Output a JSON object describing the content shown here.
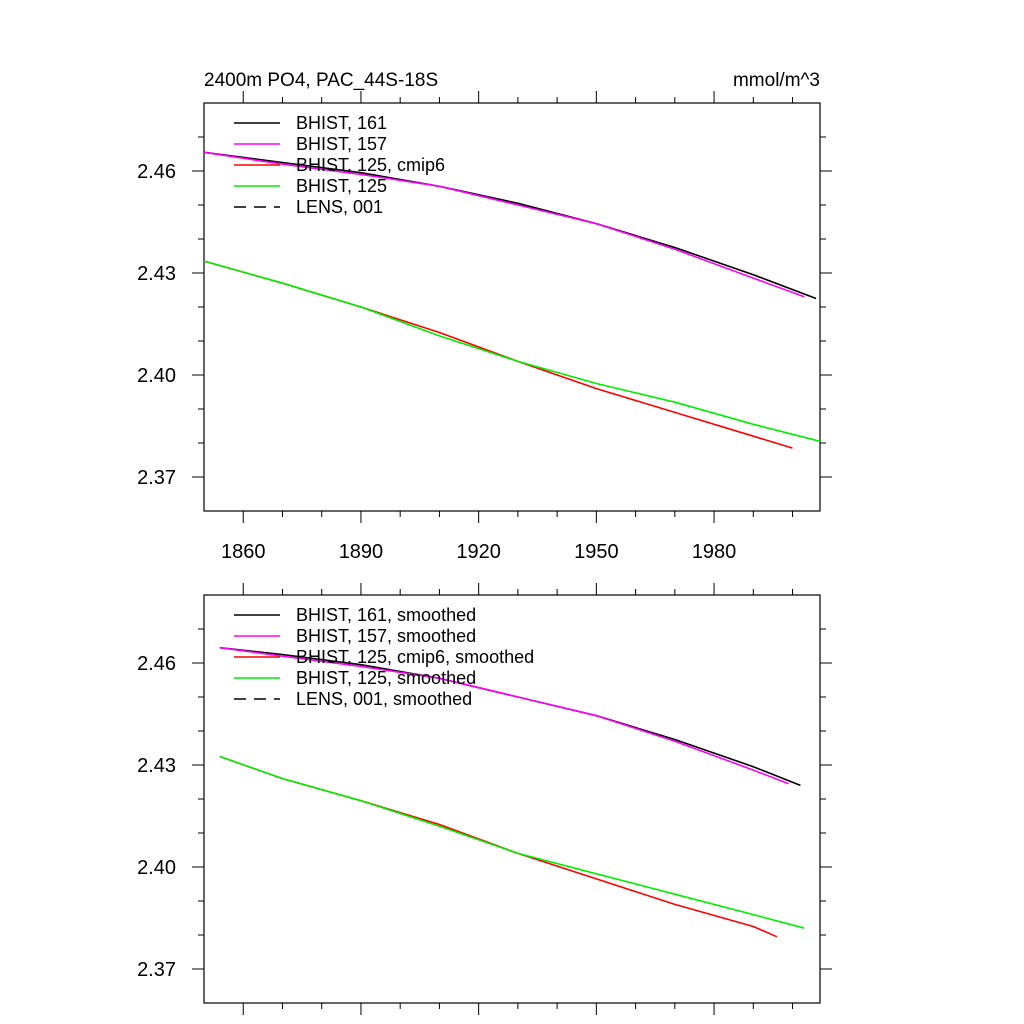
{
  "chart_data": [
    {
      "type": "line",
      "title": "2400m PO4, PAC_44S-18S",
      "units": "mmol/m^3",
      "xlim": [
        1850,
        2007
      ],
      "ylim": [
        2.36,
        2.48
      ],
      "xticks": [
        1860,
        1890,
        1920,
        1950,
        1980
      ],
      "xtick_labels": [
        "1860",
        "1890",
        "1920",
        "1950",
        "1980"
      ],
      "yticks": [
        2.37,
        2.4,
        2.43,
        2.46
      ],
      "ytick_labels": [
        "2.37",
        "2.40",
        "2.43",
        "2.46"
      ],
      "legend_position": "top-left",
      "series": [
        {
          "name": "BHIST, 161",
          "color": "#000000",
          "dash": "solid",
          "x": [
            1850,
            1870,
            1890,
            1910,
            1930,
            1950,
            1970,
            1990,
            2006
          ],
          "y": [
            2.4655,
            2.4625,
            2.4595,
            2.4555,
            2.4505,
            2.4445,
            2.4375,
            2.4295,
            2.4225
          ]
        },
        {
          "name": "BHIST, 157",
          "color": "#ff00ff",
          "dash": "solid",
          "x": [
            1850,
            1870,
            1890,
            1910,
            1930,
            1950,
            1970,
            1990,
            2003
          ],
          "y": [
            2.4655,
            2.462,
            2.459,
            2.4555,
            2.45,
            2.4445,
            2.437,
            2.4285,
            2.423
          ]
        },
        {
          "name": "BHIST, 125, cmip6",
          "color": "#ff0000",
          "dash": "solid",
          "x": [
            1850,
            1870,
            1890,
            1910,
            1930,
            1950,
            1970,
            1990,
            2000
          ],
          "y": [
            2.4335,
            2.427,
            2.42,
            2.4125,
            2.404,
            2.396,
            2.389,
            2.382,
            2.3785
          ]
        },
        {
          "name": "BHIST, 125",
          "color": "#00ee00",
          "dash": "solid",
          "x": [
            1850,
            1870,
            1890,
            1910,
            1930,
            1950,
            1970,
            1990,
            2007
          ],
          "y": [
            2.4335,
            2.427,
            2.42,
            2.4115,
            2.404,
            2.3975,
            2.392,
            2.3855,
            2.3805
          ]
        },
        {
          "name": "LENS, 001",
          "color": "#000000",
          "dash": "dashed",
          "x": [],
          "y": []
        }
      ]
    },
    {
      "type": "line",
      "xlim": [
        1850,
        2007
      ],
      "ylim": [
        2.36,
        2.48
      ],
      "xticks": [
        1860,
        1890,
        1920,
        1950,
        1980
      ],
      "yticks": [
        2.37,
        2.4,
        2.43,
        2.46
      ],
      "ytick_labels": [
        "2.37",
        "2.40",
        "2.43",
        "2.46"
      ],
      "legend_position": "top-left",
      "series": [
        {
          "name": "BHIST, 161, smoothed",
          "color": "#000000",
          "dash": "solid",
          "x": [
            1854,
            1870,
            1890,
            1910,
            1930,
            1950,
            1970,
            1990,
            2002
          ],
          "y": [
            2.4645,
            2.4625,
            2.4595,
            2.4555,
            2.45,
            2.4445,
            2.4375,
            2.4295,
            2.424
          ]
        },
        {
          "name": "BHIST, 157, smoothed",
          "color": "#ff00ff",
          "dash": "solid",
          "x": [
            1854,
            1870,
            1890,
            1910,
            1930,
            1950,
            1970,
            1990,
            1999
          ],
          "y": [
            2.4645,
            2.462,
            2.459,
            2.4555,
            2.45,
            2.4445,
            2.437,
            2.4285,
            2.4245
          ]
        },
        {
          "name": "BHIST, 125, cmip6, smoothed",
          "color": "#ff0000",
          "dash": "solid",
          "x": [
            1854,
            1870,
            1890,
            1910,
            1930,
            1950,
            1970,
            1990,
            1996
          ],
          "y": [
            2.4325,
            2.426,
            2.4195,
            2.4125,
            2.404,
            2.3965,
            2.389,
            2.3825,
            2.3795
          ]
        },
        {
          "name": "BHIST, 125, smoothed",
          "color": "#00ee00",
          "dash": "solid",
          "x": [
            1854,
            1870,
            1890,
            1910,
            1930,
            1950,
            1970,
            1990,
            2003
          ],
          "y": [
            2.4325,
            2.426,
            2.4195,
            2.412,
            2.404,
            2.398,
            2.392,
            2.386,
            2.382
          ]
        },
        {
          "name": "LENS, 001, smoothed",
          "color": "#000000",
          "dash": "dashed",
          "x": [],
          "y": []
        }
      ]
    }
  ]
}
